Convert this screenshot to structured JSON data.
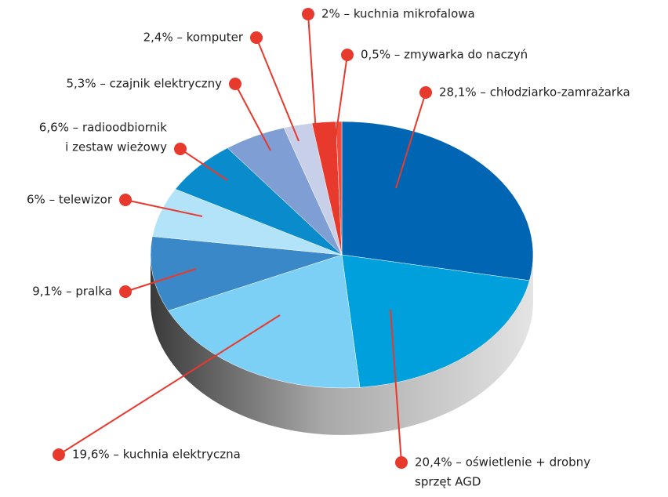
{
  "chart_data": {
    "type": "pie",
    "values": [
      28.1,
      20.4,
      19.6,
      9.1,
      6,
      6.6,
      5.3,
      2.4,
      2,
      0.5
    ],
    "value_labels": [
      [
        "28,1% – chłodziarko-zamrażarka"
      ],
      [
        "20,4% – oświetlenie + drobny",
        "sprzęt AGD"
      ],
      [
        "19,6% – kuchnia elektryczna"
      ],
      [
        "9,1% – pralka"
      ],
      [
        "6% – telewizor"
      ],
      [
        "6,6% – radioodbiornik",
        "i zestaw wieżowy"
      ],
      [
        "5,3% – czajnik elektryczny"
      ],
      [
        "2,4% – komputer"
      ],
      [
        "2% – kuchnia mikrofalowa"
      ],
      [
        "0,5% – zmywarka do naczyń"
      ]
    ],
    "colors": [
      "#0066b3",
      "#00a0dc",
      "#7dd0f5",
      "#3a88c8",
      "#b3e3f8",
      "#0a8ccc",
      "#7f9fd4",
      "#c8cfe8",
      "#e8392d",
      "#ef4a3c"
    ]
  }
}
